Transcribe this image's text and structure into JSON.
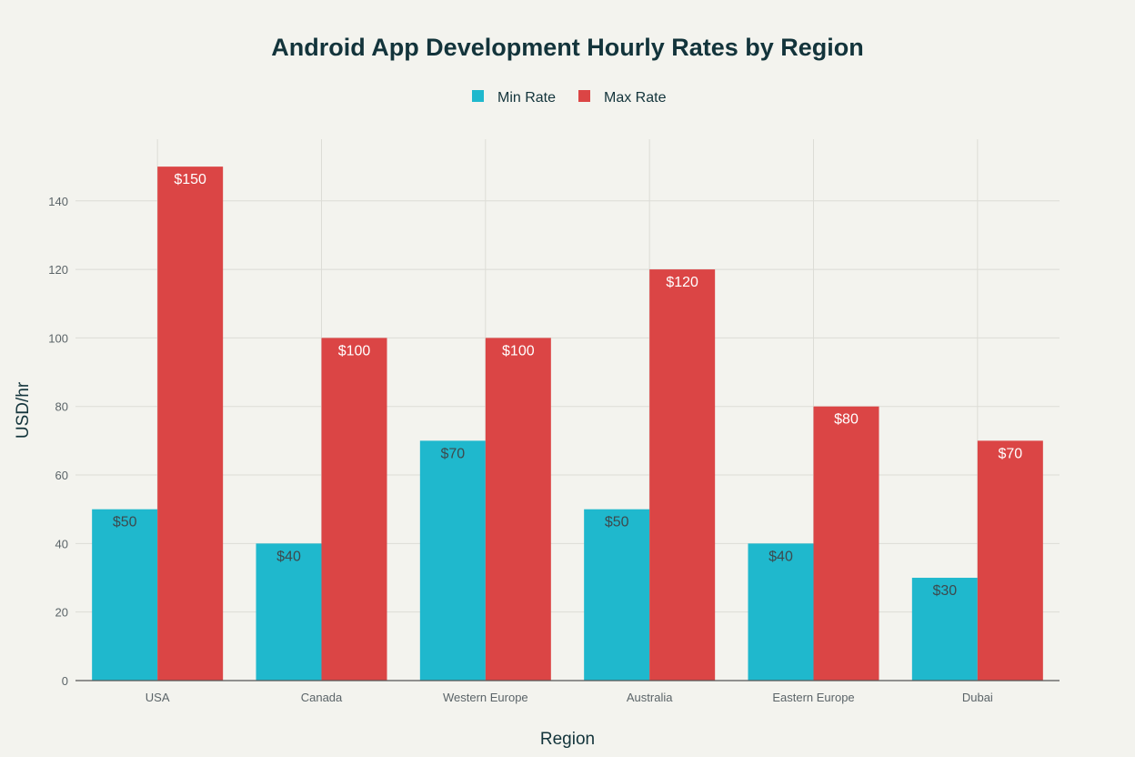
{
  "chart_data": {
    "type": "bar",
    "title": "Android App Development Hourly Rates by Region",
    "xlabel": "Region",
    "ylabel": "USD/hr",
    "categories": [
      "USA",
      "Canada",
      "Western Europe",
      "Australia",
      "Eastern Europe",
      "Dubai"
    ],
    "series": [
      {
        "name": "Min Rate",
        "color": "#1FB8CD",
        "values": [
          50,
          40,
          70,
          50,
          40,
          30
        ],
        "labels": [
          "$50",
          "$40",
          "$70",
          "$50",
          "$40",
          "$30"
        ]
      },
      {
        "name": "Max Rate",
        "color": "#DB4545",
        "values": [
          150,
          100,
          100,
          120,
          80,
          70
        ],
        "labels": [
          "$150",
          "$100",
          "$100",
          "$120",
          "$80",
          "$70"
        ]
      }
    ],
    "ylim": [
      0,
      158
    ],
    "yticks": [
      0,
      20,
      40,
      60,
      80,
      100,
      120,
      140
    ],
    "grid": true,
    "legend_position": "top-center"
  }
}
